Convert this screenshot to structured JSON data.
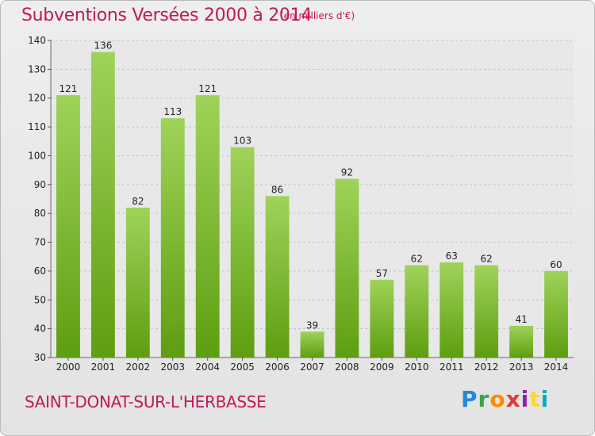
{
  "header": {
    "title": "Subventions Versées 2000 à 2014",
    "subtitle": "(en milliers d'€)"
  },
  "footer": {
    "city": "SAINT-DONAT-SUR-L'HERBASSE",
    "logo": "Proxiti"
  },
  "colors": {
    "title": "#c2185b",
    "bar_top": "#9fd35a",
    "bar_bottom": "#5e9e10"
  },
  "chart_data": {
    "type": "bar",
    "title": "Subventions Versées 2000 à 2014",
    "subtitle": "(en milliers d'€)",
    "xlabel": "",
    "ylabel": "",
    "categories": [
      "2000",
      "2001",
      "2002",
      "2003",
      "2004",
      "2005",
      "2006",
      "2007",
      "2008",
      "2009",
      "2010",
      "2011",
      "2012",
      "2013",
      "2014"
    ],
    "values": [
      121,
      136,
      82,
      113,
      121,
      103,
      86,
      39,
      92,
      57,
      62,
      63,
      62,
      41,
      60
    ],
    "ylim": [
      30,
      140
    ],
    "yticks": [
      30,
      40,
      50,
      60,
      70,
      80,
      90,
      100,
      110,
      120,
      130,
      140
    ],
    "grid": true,
    "legend": "none"
  }
}
